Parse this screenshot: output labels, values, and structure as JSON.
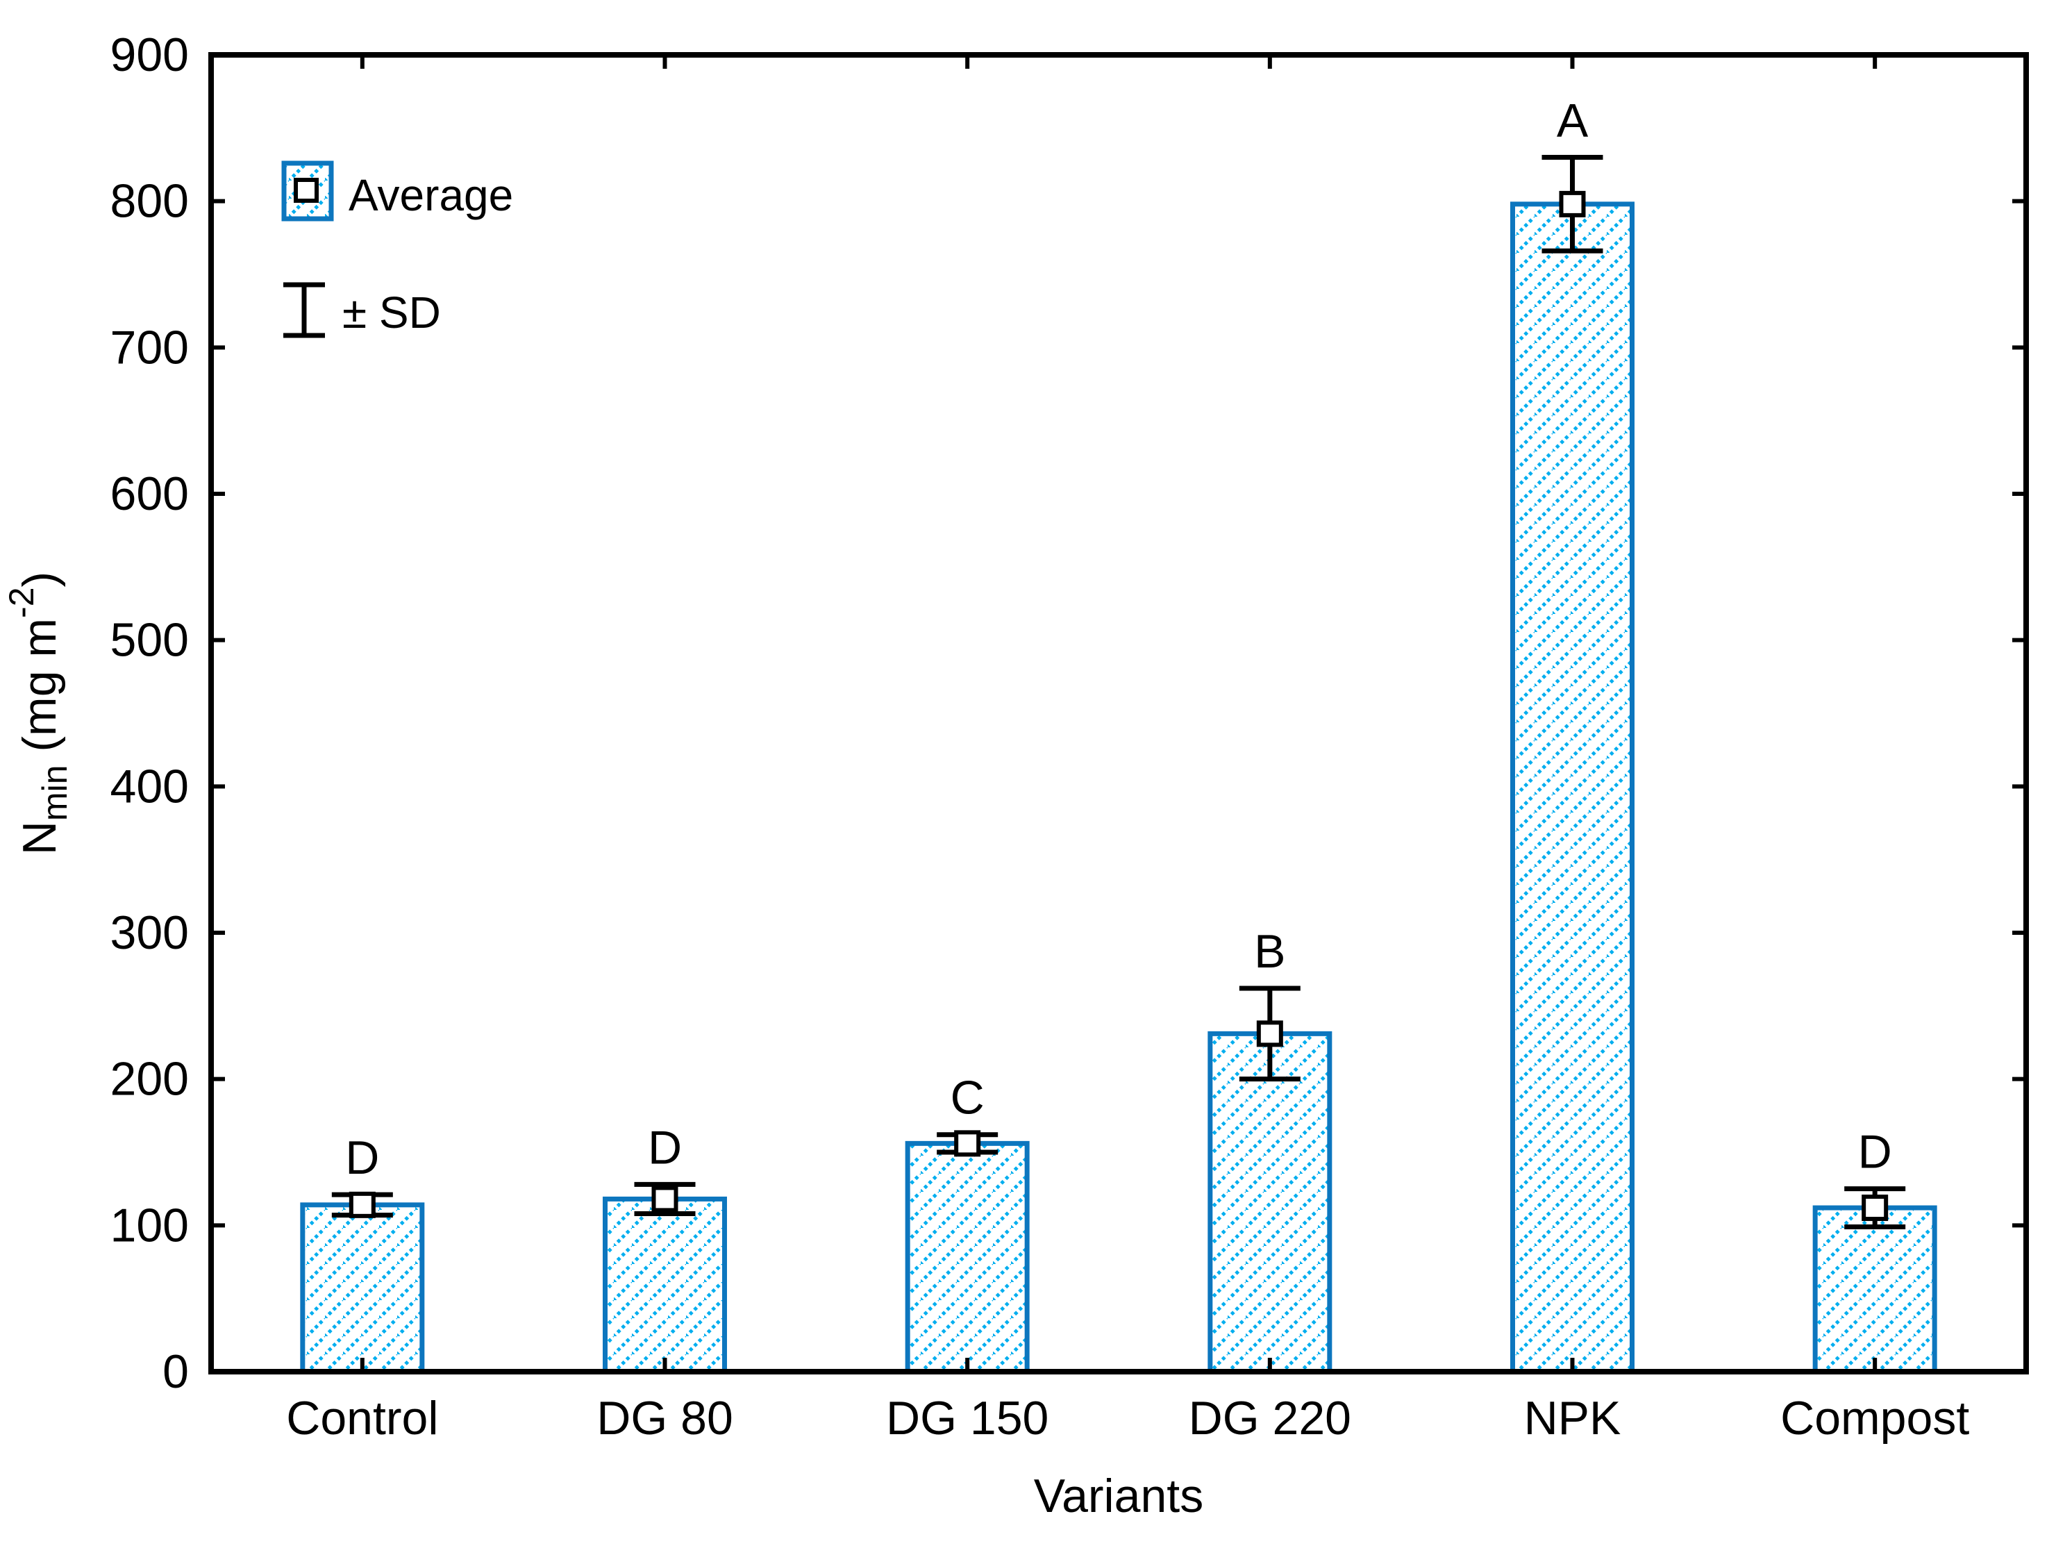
{
  "chart_data": {
    "type": "bar",
    "title": "",
    "xlabel": "Variants",
    "ylabel": "Nmin (mg m-2)",
    "ylabel_parts": [
      {
        "text": "N",
        "style": "normal"
      },
      {
        "text": "min",
        "style": "sub"
      },
      {
        "text": " (mg m",
        "style": "normal"
      },
      {
        "text": "-2",
        "style": "sup"
      },
      {
        "text": ")",
        "style": "normal"
      }
    ],
    "categories": [
      "Control",
      "DG 80",
      "DG 150",
      "DG 220",
      "NPK",
      "Compost"
    ],
    "series": [
      {
        "name": "Average",
        "values": [
          114,
          118,
          156,
          231,
          798,
          112
        ]
      }
    ],
    "sd": [
      7,
      10,
      6,
      31,
      32,
      13
    ],
    "letters": [
      "D",
      "D",
      "C",
      "B",
      "A",
      "D"
    ],
    "ylim": [
      0,
      900
    ],
    "ytick_step": 100,
    "ytick_labels": [
      "0",
      "100",
      "200",
      "300",
      "400",
      "500",
      "600",
      "700",
      "800",
      "900"
    ],
    "grid": false,
    "legend": {
      "position": "top-left",
      "items": [
        {
          "symbol": "hatched-square-marker",
          "label": "Average"
        },
        {
          "symbol": "error-bar",
          "label": "± SD"
        }
      ]
    },
    "colors": {
      "bar_border": "#0D76BE",
      "hatch": "#00AEEF",
      "ink": "#000000",
      "background": "#FFFFFF"
    }
  }
}
